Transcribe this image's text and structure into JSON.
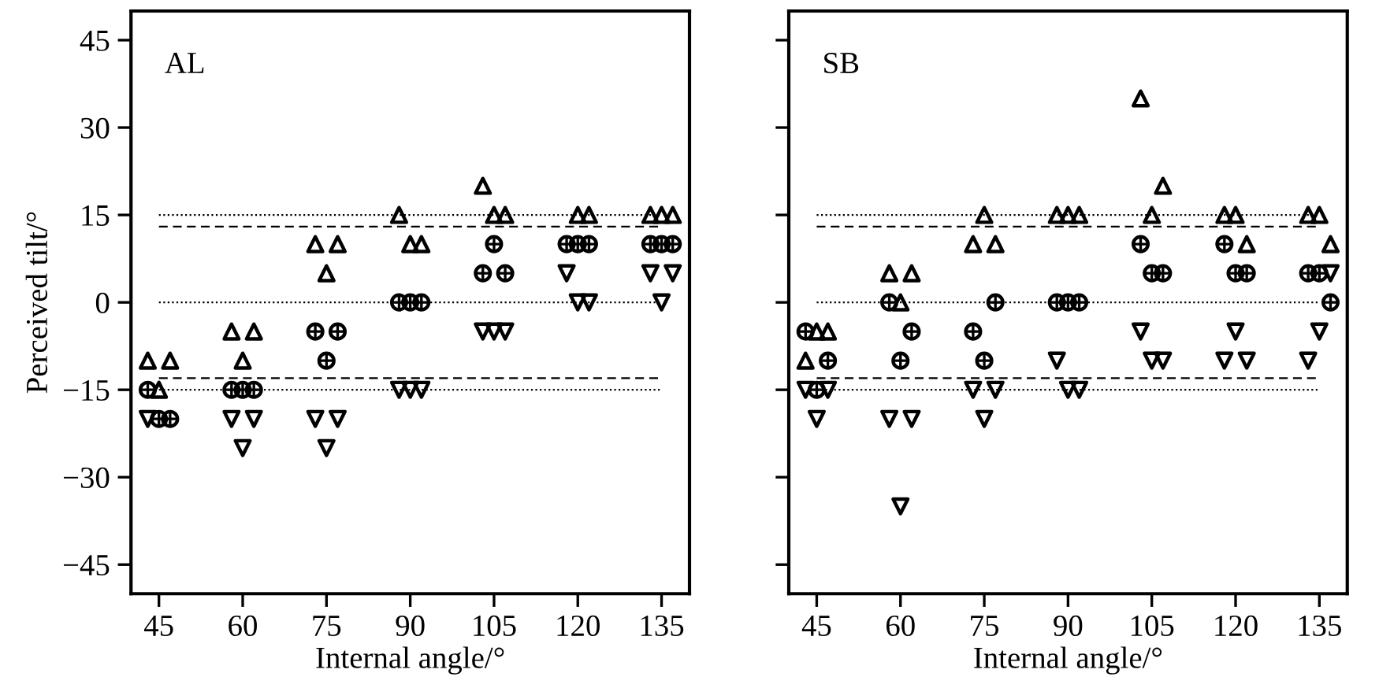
{
  "chart_data": [
    {
      "type": "scatter",
      "xlabel": "Internal angle/°",
      "ylabel": "Perceived tilt/°",
      "annotations": [
        "AL"
      ],
      "xlim": [
        40,
        140
      ],
      "ylim": [
        -50,
        50
      ],
      "xticks": [
        45,
        60,
        75,
        90,
        105,
        120,
        135
      ],
      "yticks": [
        {
          "value": -45,
          "label": "−45"
        },
        {
          "value": -30,
          "label": "−30"
        },
        {
          "value": -15,
          "label": "−15"
        },
        0,
        15,
        30,
        45
      ],
      "grid": false,
      "legend": false,
      "ref_lines": [
        {
          "axis": "y",
          "value": 15,
          "line_style": "dotted"
        },
        {
          "axis": "y",
          "value": 0,
          "line_style": "dotted"
        },
        {
          "axis": "y",
          "value": -15,
          "line_style": "dotted"
        },
        {
          "axis": "y",
          "value": 13,
          "line_style": "dashed"
        },
        {
          "axis": "y",
          "value": -13,
          "line_style": "dashed"
        }
      ],
      "series": [
        {
          "marker": "triangle",
          "color": "#000000",
          "x": [
            43,
            47,
            45,
            58,
            62,
            60,
            73,
            77,
            75,
            88,
            90,
            92,
            103,
            105,
            107,
            120,
            122,
            133,
            135,
            137
          ],
          "values": [
            -10,
            -10,
            -15,
            -5,
            -5,
            -10,
            10,
            10,
            5,
            15,
            10,
            10,
            20,
            15,
            15,
            15,
            15,
            15,
            15,
            15
          ]
        },
        {
          "marker": "circle",
          "color": "#000000",
          "x": [
            43,
            45,
            47,
            58,
            60,
            62,
            73,
            77,
            75,
            88,
            90,
            92,
            105,
            103,
            107,
            118,
            120,
            122,
            133,
            135,
            137
          ],
          "values": [
            -15,
            -20,
            -20,
            -15,
            -15,
            -15,
            -5,
            -5,
            -10,
            0,
            0,
            0,
            10,
            5,
            5,
            10,
            10,
            10,
            10,
            10,
            10
          ]
        },
        {
          "marker": "triangle_down",
          "color": "#000000",
          "x": [
            43,
            58,
            62,
            60,
            73,
            77,
            75,
            88,
            90,
            92,
            103,
            105,
            107,
            118,
            120,
            122,
            133,
            137,
            135
          ],
          "values": [
            -20,
            -20,
            -20,
            -25,
            -20,
            -20,
            -25,
            -15,
            -15,
            -15,
            -5,
            -5,
            -5,
            5,
            0,
            0,
            5,
            5,
            0
          ]
        }
      ]
    },
    {
      "type": "scatter",
      "xlabel": "Internal angle/°",
      "annotations": [
        "SB"
      ],
      "xlim": [
        40,
        140
      ],
      "ylim": [
        -50,
        50
      ],
      "xticks": [
        45,
        60,
        75,
        90,
        105,
        120,
        135
      ],
      "yticks": [
        {
          "value": -45,
          "label": null
        },
        {
          "value": -30,
          "label": null
        },
        {
          "value": -15,
          "label": null
        },
        {
          "value": 0,
          "label": null
        },
        {
          "value": 15,
          "label": null
        },
        {
          "value": 30,
          "label": null
        },
        {
          "value": 45,
          "label": null
        }
      ],
      "tick_labels": "x",
      "grid": false,
      "legend": false,
      "ref_lines": [
        {
          "axis": "y",
          "value": 15,
          "line_style": "dotted"
        },
        {
          "axis": "y",
          "value": 0,
          "line_style": "dotted"
        },
        {
          "axis": "y",
          "value": -15,
          "line_style": "dotted"
        },
        {
          "axis": "y",
          "value": 13,
          "line_style": "dashed"
        },
        {
          "axis": "y",
          "value": -13,
          "line_style": "dashed"
        }
      ],
      "series": [
        {
          "marker": "triangle",
          "color": "#000000",
          "x": [
            45,
            47,
            43,
            58,
            62,
            60,
            75,
            73,
            77,
            88,
            90,
            92,
            103,
            107,
            105,
            118,
            120,
            122,
            133,
            135,
            137
          ],
          "values": [
            -5,
            -5,
            -10,
            5,
            5,
            0,
            15,
            10,
            10,
            15,
            15,
            15,
            35,
            20,
            15,
            15,
            15,
            10,
            15,
            15,
            10
          ]
        },
        {
          "marker": "circle",
          "color": "#000000",
          "x": [
            43,
            47,
            45,
            58,
            62,
            60,
            77,
            73,
            75,
            88,
            90,
            92,
            103,
            105,
            107,
            118,
            120,
            122,
            133,
            135,
            137
          ],
          "values": [
            -5,
            -10,
            -15,
            0,
            -5,
            -10,
            0,
            -5,
            -10,
            0,
            0,
            0,
            10,
            5,
            5,
            10,
            5,
            5,
            5,
            5,
            0
          ]
        },
        {
          "marker": "triangle_down",
          "color": "#000000",
          "x": [
            43,
            47,
            45,
            58,
            62,
            60,
            73,
            77,
            75,
            88,
            90,
            92,
            103,
            105,
            107,
            120,
            118,
            122,
            137,
            135,
            133
          ],
          "values": [
            -15,
            -15,
            -20,
            -20,
            -20,
            -35,
            -15,
            -15,
            -20,
            -10,
            -15,
            -15,
            -5,
            -10,
            -10,
            -5,
            -10,
            -10,
            5,
            -5,
            -10
          ]
        }
      ]
    }
  ]
}
